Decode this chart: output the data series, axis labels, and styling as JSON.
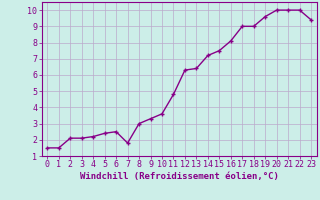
{
  "x": [
    0,
    1,
    2,
    3,
    4,
    5,
    6,
    7,
    8,
    9,
    10,
    11,
    12,
    13,
    14,
    15,
    16,
    17,
    18,
    19,
    20,
    21,
    22,
    23
  ],
  "y": [
    1.5,
    1.5,
    2.1,
    2.1,
    2.2,
    2.4,
    2.5,
    1.8,
    3.0,
    3.3,
    3.6,
    4.8,
    6.3,
    6.4,
    7.2,
    7.5,
    8.1,
    9.0,
    9.0,
    9.6,
    10.0,
    10.0,
    10.0,
    9.4
  ],
  "line_color": "#880088",
  "marker": "P",
  "marker_size": 2.5,
  "bg_color": "#cceee8",
  "grid_color": "#bbaacc",
  "xlabel": "Windchill (Refroidissement éolien,°C)",
  "xlim": [
    -0.5,
    23.5
  ],
  "ylim": [
    1,
    10.5
  ],
  "yticks": [
    1,
    2,
    3,
    4,
    5,
    6,
    7,
    8,
    9,
    10
  ],
  "xticks": [
    0,
    1,
    2,
    3,
    4,
    5,
    6,
    7,
    8,
    9,
    10,
    11,
    12,
    13,
    14,
    15,
    16,
    17,
    18,
    19,
    20,
    21,
    22,
    23
  ],
  "xlabel_fontsize": 6.5,
  "tick_fontsize": 6.0,
  "linewidth": 1.0
}
